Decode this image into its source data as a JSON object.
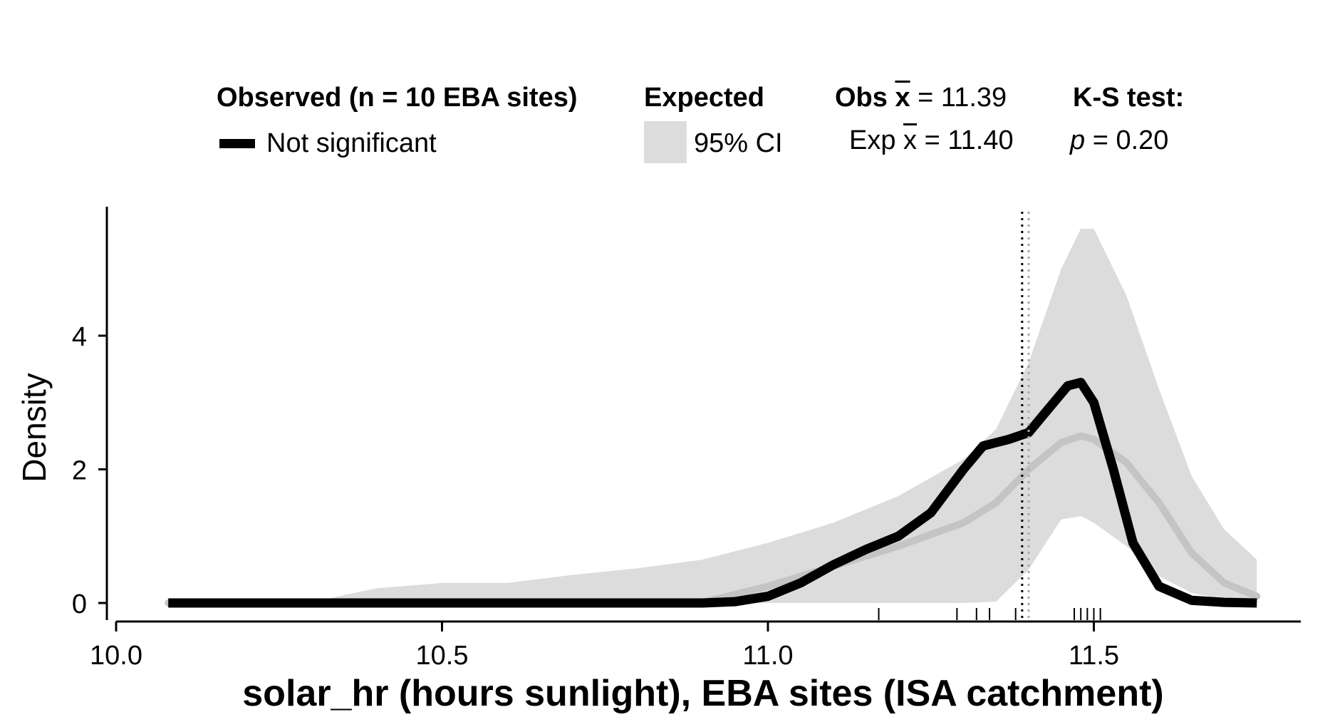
{
  "legend": {
    "observed_title": "Observed (n = 10 EBA sites)",
    "observed_item": "Not significant",
    "expected_title": "Expected",
    "expected_item": "95% CI",
    "obs_mean_prefix": "Obs ",
    "obs_mean_symbol": "x",
    "obs_mean_value": " = 11.39",
    "exp_mean_prefix": "Exp ",
    "exp_mean_symbol": "x",
    "exp_mean_value": " = 11.40",
    "test_title": "K-S test:",
    "p_symbol": "p",
    "p_value": " = 0.20"
  },
  "chart_data": {
    "type": "line",
    "xlabel": "solar_hr (hours sunlight), EBA sites (ISA catchment)",
    "ylabel": "Density",
    "xlim": [
      10.0,
      11.85
    ],
    "ylim": [
      -0.1,
      5.9
    ],
    "x_ticks": [
      10.0,
      10.5,
      11.0,
      11.5
    ],
    "x_tick_labels": [
      "10.0",
      "10.5",
      "11.0",
      "11.5"
    ],
    "y_ticks": [
      0,
      2,
      4
    ],
    "y_tick_labels": [
      "0",
      "2",
      "4"
    ],
    "grid": false,
    "colors": {
      "observed": "#000000",
      "expected_mean": "#c4c4c4",
      "ci_band": "#dcdcdc",
      "obs_mean_line": "#000000",
      "exp_mean_line": "#aaaaaa"
    },
    "series": [
      {
        "name": "Not significant",
        "x": [
          10.08,
          10.5,
          10.9,
          10.95,
          11.0,
          11.05,
          11.1,
          11.15,
          11.2,
          11.25,
          11.3,
          11.33,
          11.37,
          11.4,
          11.43,
          11.46,
          11.48,
          11.5,
          11.53,
          11.56,
          11.6,
          11.65,
          11.7,
          11.75
        ],
        "y": [
          0,
          0,
          0,
          0.02,
          0.1,
          0.3,
          0.57,
          0.8,
          1.0,
          1.35,
          2.0,
          2.35,
          2.45,
          2.55,
          2.9,
          3.25,
          3.3,
          3.0,
          2.0,
          0.9,
          0.25,
          0.04,
          0.01,
          0
        ]
      }
    ],
    "expected_mean": {
      "x": [
        10.08,
        10.5,
        10.9,
        11.0,
        11.1,
        11.2,
        11.3,
        11.35,
        11.4,
        11.45,
        11.48,
        11.5,
        11.55,
        11.6,
        11.65,
        11.7,
        11.75
      ],
      "y": [
        0,
        0,
        0.01,
        0.25,
        0.55,
        0.85,
        1.2,
        1.5,
        2.0,
        2.4,
        2.5,
        2.45,
        2.1,
        1.5,
        0.75,
        0.3,
        0.1
      ]
    },
    "ci_band": {
      "x": [
        10.08,
        10.3,
        10.35,
        10.4,
        10.5,
        10.6,
        10.7,
        10.8,
        10.9,
        11.0,
        11.1,
        11.2,
        11.3,
        11.35,
        11.4,
        11.45,
        11.48,
        11.5,
        11.55,
        11.6,
        11.65,
        11.7,
        11.75
      ],
      "upper": [
        0,
        0,
        0.12,
        0.22,
        0.3,
        0.3,
        0.42,
        0.52,
        0.65,
        0.9,
        1.2,
        1.6,
        2.15,
        2.6,
        3.6,
        5.0,
        5.6,
        5.6,
        4.6,
        3.2,
        1.9,
        1.1,
        0.65
      ],
      "lower": [
        0,
        0,
        0,
        0,
        0,
        0,
        0,
        0,
        0,
        0,
        0,
        0,
        0,
        0.02,
        0.5,
        1.25,
        1.3,
        1.2,
        0.85,
        0.4,
        0.15,
        0.05,
        0.02
      ]
    },
    "reference_lines": [
      {
        "name": "Obs mean",
        "x": 11.39
      },
      {
        "name": "Exp mean",
        "x": 11.4
      }
    ],
    "rug": [
      11.17,
      11.29,
      11.32,
      11.34,
      11.38,
      11.47,
      11.48,
      11.49,
      11.5,
      11.51
    ]
  }
}
